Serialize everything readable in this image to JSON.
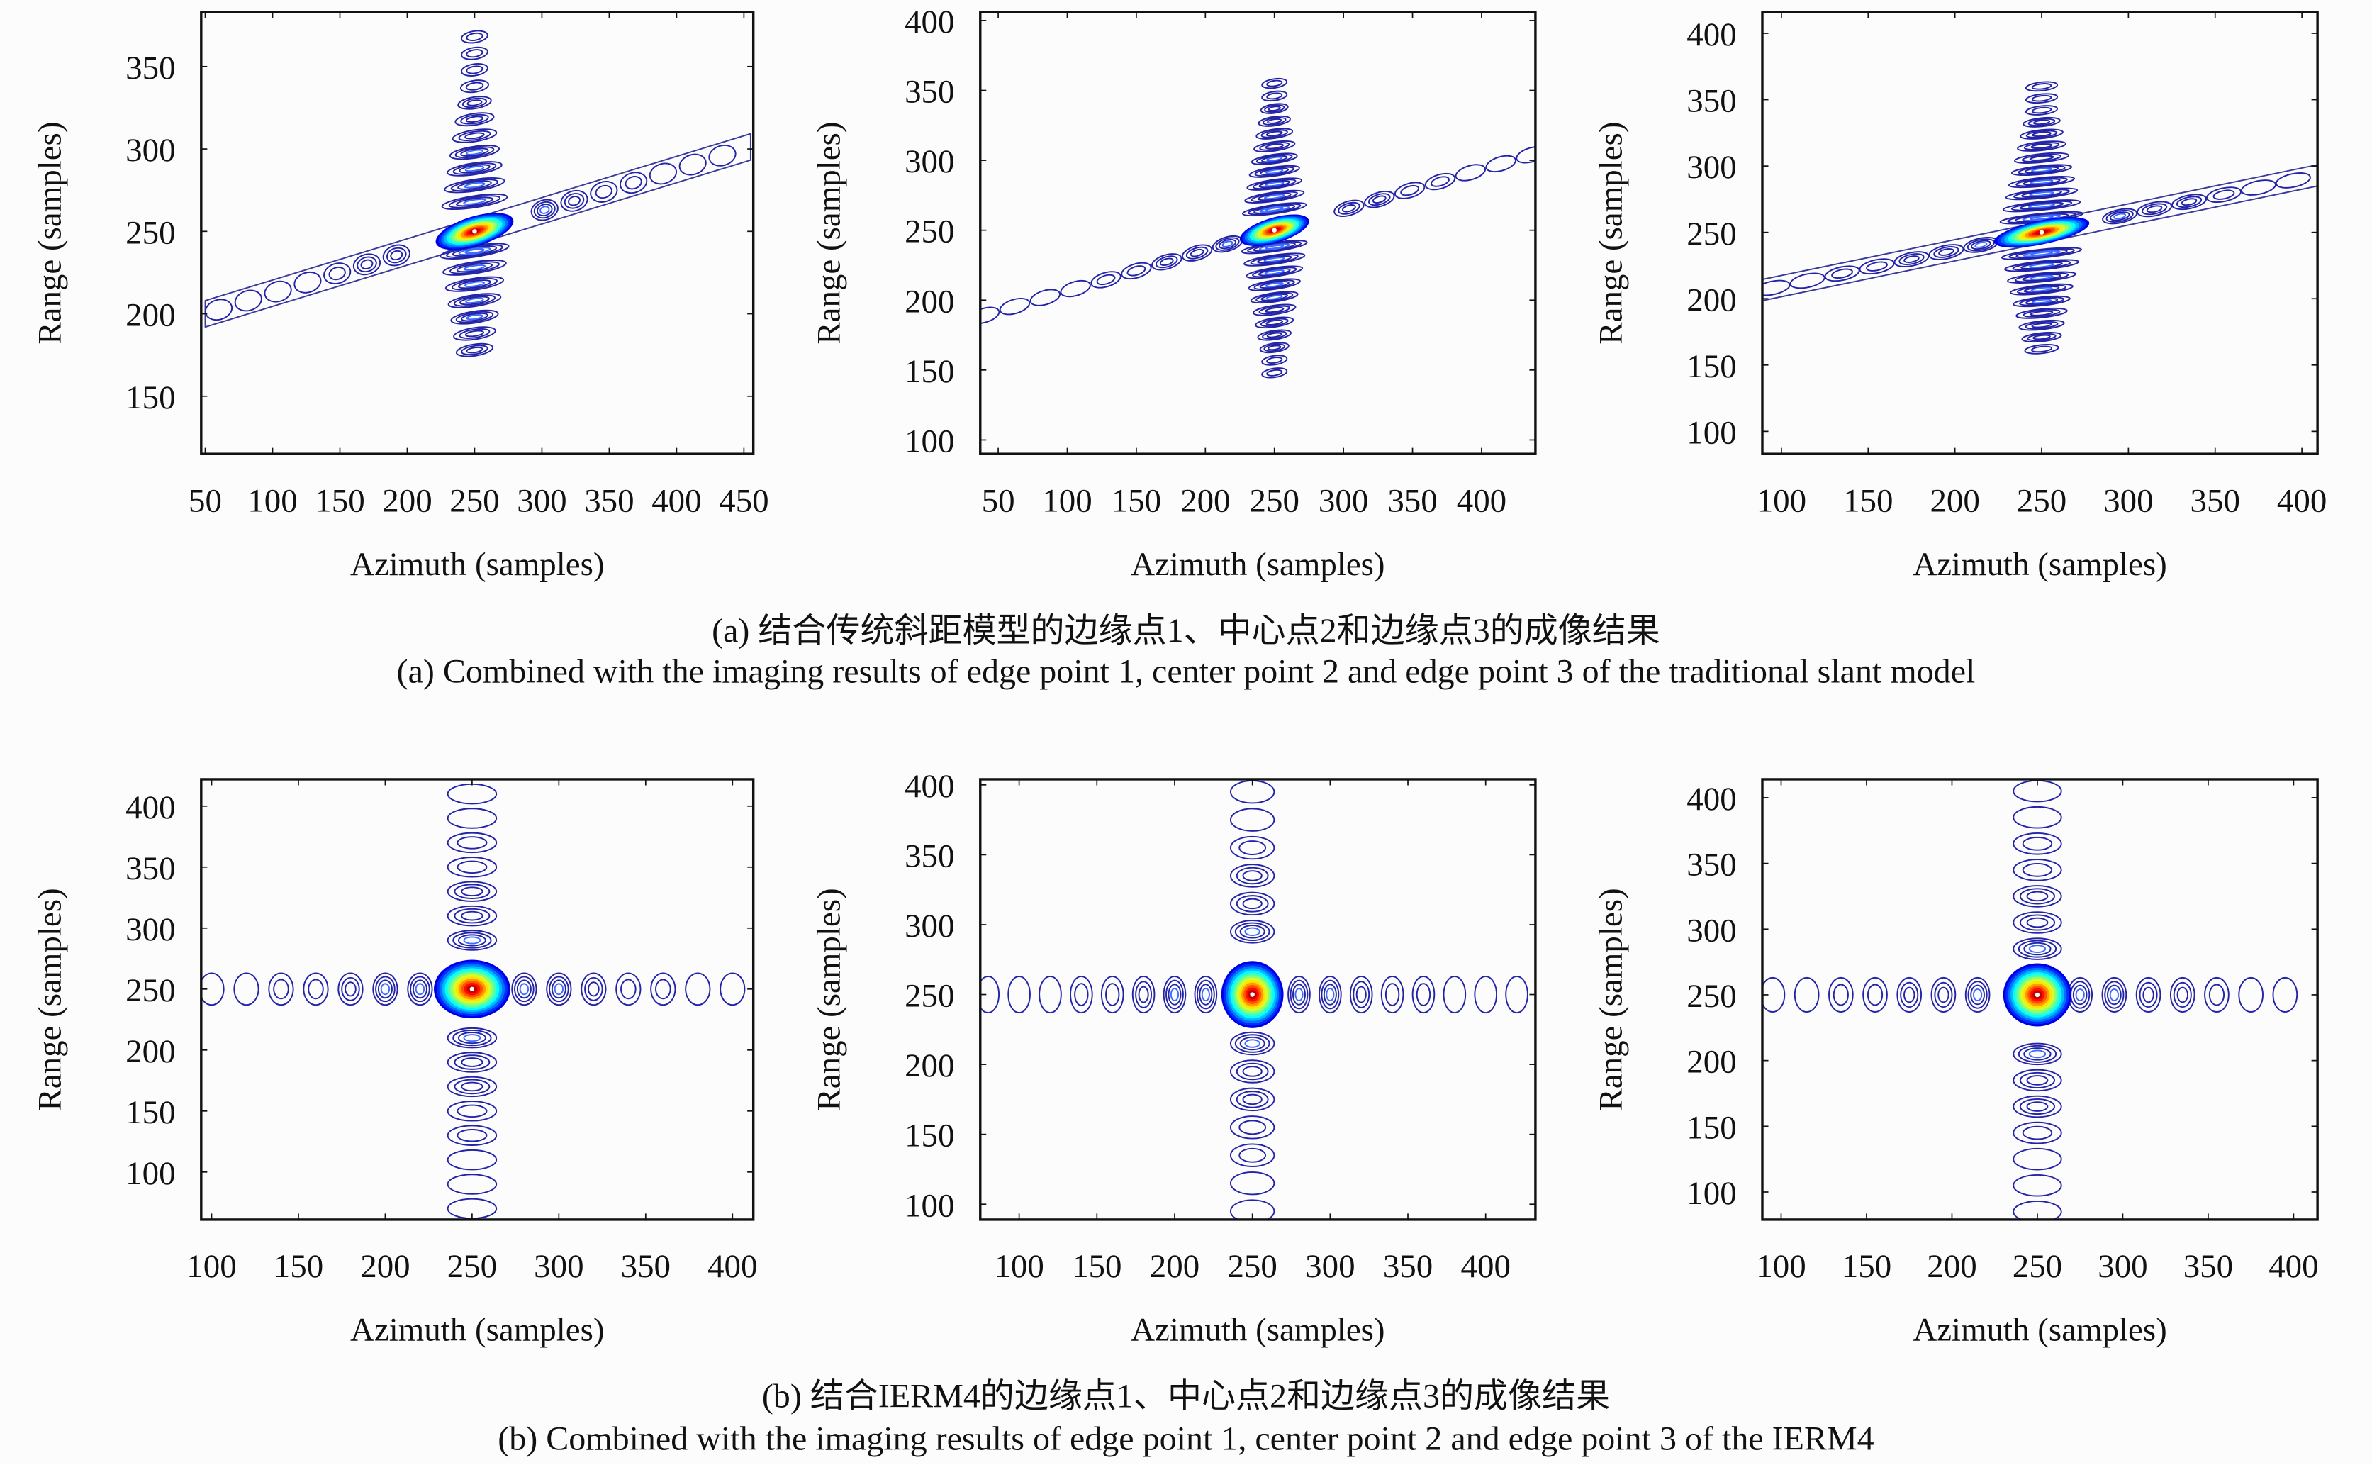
{
  "captions": {
    "a_cn": "(a) 结合传统斜距模型的边缘点1、中心点2和边缘点3的成像结果",
    "a_en": "(a) Combined with the imaging results of edge point 1, center point 2 and edge point 3 of the traditional slant model",
    "b_cn": "(b) 结合IERM4的边缘点1、中心点2和边缘点3的成像结果",
    "b_en": "(b) Combined with the imaging results of edge point 1, center point 2 and edge point 3 of the IERM4"
  },
  "colors": {
    "contour_low": "#1a1aa0",
    "contour_high": "#d00000",
    "colormap": "jet"
  },
  "chart_data": [
    {
      "type": "contour",
      "panel": "a-1",
      "xlabel": "Azimuth (samples)",
      "ylabel": "Range (samples)",
      "xlim": [
        47,
        457
      ],
      "ylim": [
        115,
        383
      ],
      "xticks": [
        50,
        100,
        150,
        200,
        250,
        300,
        350,
        400,
        450
      ],
      "yticks": [
        150,
        200,
        250,
        300,
        350
      ],
      "peak": [
        250,
        250
      ],
      "grid": false
    },
    {
      "type": "contour",
      "panel": "a-2",
      "xlabel": "Azimuth (samples)",
      "ylabel": "Range (samples)",
      "xlim": [
        37,
        439
      ],
      "ylim": [
        90,
        406
      ],
      "xticks": [
        50,
        100,
        150,
        200,
        250,
        300,
        350,
        400
      ],
      "yticks": [
        100,
        150,
        200,
        250,
        300,
        350,
        400
      ],
      "peak": [
        250,
        250
      ],
      "grid": false
    },
    {
      "type": "contour",
      "panel": "a-3",
      "xlabel": "Azimuth (samples)",
      "ylabel": "Range (samples)",
      "xlim": [
        89,
        409
      ],
      "ylim": [
        83,
        416
      ],
      "xticks": [
        100,
        150,
        200,
        250,
        300,
        350,
        400
      ],
      "yticks": [
        100,
        150,
        200,
        250,
        300,
        350,
        400
      ],
      "peak": [
        250,
        250
      ],
      "grid": false
    },
    {
      "type": "contour",
      "panel": "b-1",
      "xlabel": "Azimuth (samples)",
      "ylabel": "Range (samples)",
      "xlim": [
        94,
        412
      ],
      "ylim": [
        61,
        422
      ],
      "xticks": [
        100,
        150,
        200,
        250,
        300,
        350,
        400
      ],
      "yticks": [
        100,
        150,
        200,
        250,
        300,
        350,
        400
      ],
      "peak": [
        250,
        250
      ],
      "grid": false
    },
    {
      "type": "contour",
      "panel": "b-2",
      "xlabel": "Azimuth (samples)",
      "ylabel": "Range (samples)",
      "xlim": [
        75,
        432
      ],
      "ylim": [
        89,
        404
      ],
      "xticks": [
        100,
        150,
        200,
        250,
        300,
        350,
        400
      ],
      "yticks": [
        100,
        150,
        200,
        250,
        300,
        350,
        400
      ],
      "peak": [
        250,
        250
      ],
      "grid": false
    },
    {
      "type": "contour",
      "panel": "b-3",
      "xlabel": "Azimuth (samples)",
      "ylabel": "Range (samples)",
      "xlim": [
        89,
        414
      ],
      "ylim": [
        79,
        414
      ],
      "xticks": [
        100,
        150,
        200,
        250,
        300,
        350,
        400
      ],
      "yticks": [
        100,
        150,
        200,
        250,
        300,
        350,
        400
      ],
      "peak": [
        250,
        250
      ],
      "grid": false
    }
  ]
}
